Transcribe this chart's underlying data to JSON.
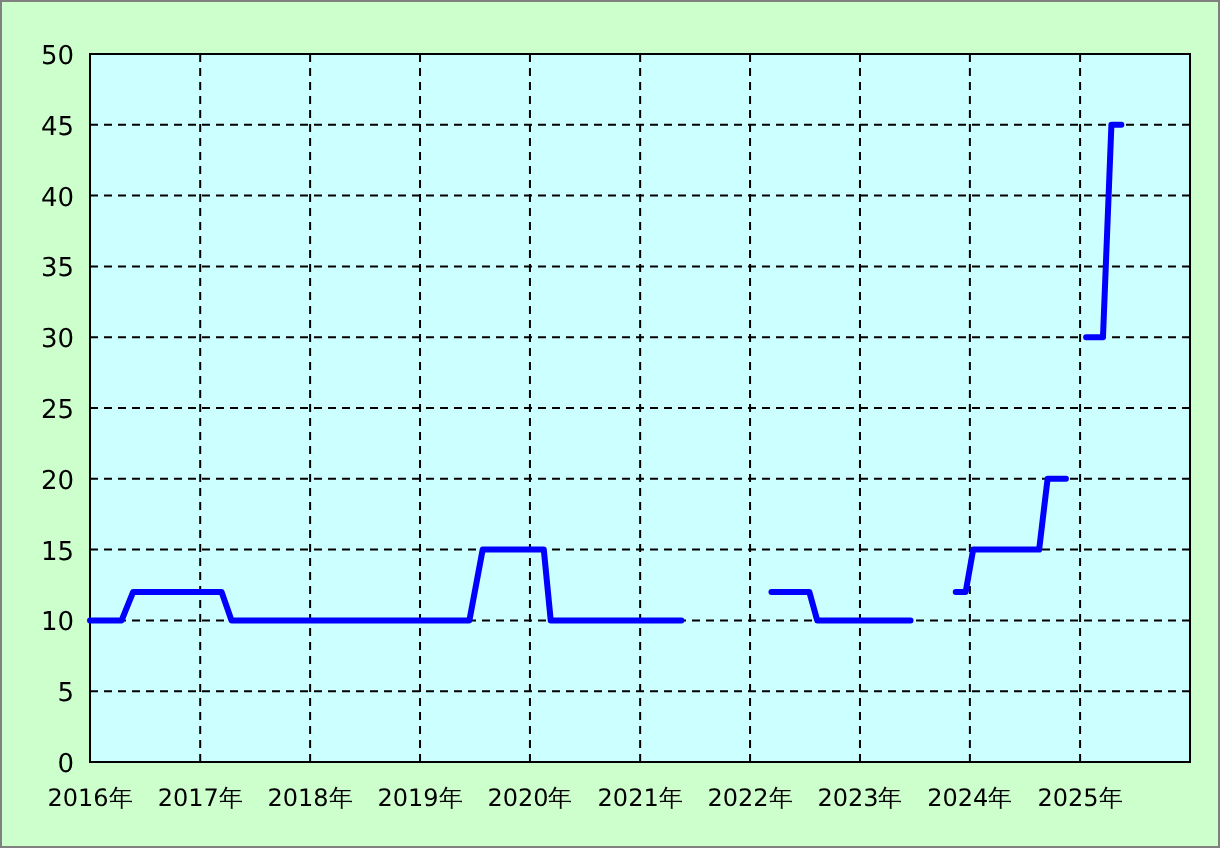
{
  "chart_data": {
    "type": "line",
    "line_style": "solid",
    "marker": "none",
    "grid": true,
    "x": [
      "2016-01-01",
      "2016-04-15",
      "2016-05-23",
      "2017-03-13",
      "2017-04-15",
      "2019-06-14",
      "2019-07-28",
      "2020-02-16",
      "2020-03-10",
      "2021-05-18",
      "2021-10-01",
      "2022-03-13",
      "2022-07-17",
      "2022-08-12",
      "2023-06-18",
      "2023-09-01",
      "2023-11-15",
      "2023-12-18",
      "2024-01-12",
      "2024-08-18",
      "2024-09-15",
      "2024-11-15",
      "2024-12-15",
      "2025-01-21",
      "2025-03-18",
      "2025-04-15",
      "2025-05-18"
    ],
    "series": [
      {
        "color": "#0000ff",
        "values": [
          10,
          10,
          12,
          12,
          10,
          10,
          15,
          15,
          10,
          10,
          null,
          12,
          12,
          10,
          10,
          null,
          12,
          12,
          15,
          15,
          20,
          20,
          null,
          30,
          30,
          45,
          45
        ]
      }
    ],
    "xlim": [
      "2016-01-01",
      "2026-01-01"
    ],
    "xticks": [
      {
        "value": "2016-01-01",
        "label": "2016年"
      },
      {
        "value": "2017-01-01",
        "label": "2017年"
      },
      {
        "value": "2018-01-01",
        "label": "2018年"
      },
      {
        "value": "2019-01-01",
        "label": "2019年"
      },
      {
        "value": "2020-01-01",
        "label": "2020年"
      },
      {
        "value": "2021-01-01",
        "label": "2021年"
      },
      {
        "value": "2022-01-01",
        "label": "2022年"
      },
      {
        "value": "2023-01-01",
        "label": "2023年"
      },
      {
        "value": "2024-01-01",
        "label": "2024年"
      },
      {
        "value": "2025-01-01",
        "label": "2025年"
      }
    ],
    "ylim": [
      0,
      50
    ],
    "yticks": [
      0,
      5,
      10,
      15,
      20,
      25,
      30,
      35,
      40,
      45,
      50
    ]
  }
}
